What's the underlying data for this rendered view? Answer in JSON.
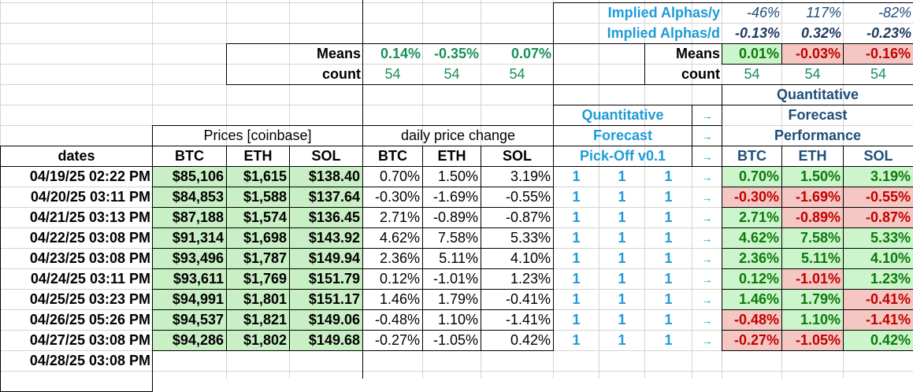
{
  "top_stats": {
    "implied_alphas_y": {
      "label": "Implied Alphas/y",
      "values": [
        "-46%",
        "117%",
        "-82%"
      ]
    },
    "implied_alphas_d": {
      "label": "Implied Alphas/d",
      "values": [
        "-0.13%",
        "0.32%",
        "-0.23%"
      ]
    },
    "change_means": {
      "label": "Means",
      "values": [
        "0.14%",
        "-0.35%",
        "0.07%"
      ]
    },
    "change_count": {
      "label": "count",
      "values": [
        54,
        54,
        54
      ]
    },
    "performance_means": {
      "label": "Means",
      "values": [
        "0.01%",
        "-0.03%",
        "-0.16%"
      ]
    },
    "performance_count": {
      "label": "count",
      "values": [
        54,
        54,
        54
      ]
    }
  },
  "headers": {
    "dates": "dates",
    "prices_group": "Prices [coinbase]",
    "change_group": "daily price change",
    "forecast_group": [
      "Quantitative",
      "Forecast",
      "Pick-Off v0.1"
    ],
    "arrows": [
      "→",
      "→",
      "→"
    ],
    "performance_group": [
      "Quantitative",
      "Forecast",
      "Performance"
    ],
    "price_cols": [
      "BTC",
      "ETH",
      "SOL"
    ],
    "change_cols": [
      "BTC",
      "ETH",
      "SOL"
    ],
    "performance_cols": [
      "BTC",
      "ETH",
      "SOL"
    ]
  },
  "rows": [
    {
      "date": "04/19/25 02:22 PM",
      "prices": [
        "$85,106",
        "$1,615",
        "$138.40"
      ],
      "changes": [
        "0.70%",
        "1.50%",
        "3.19%"
      ],
      "forecast": [
        1,
        1,
        1
      ],
      "arrow": "→",
      "performance": [
        "0.70%",
        "1.50%",
        "3.19%"
      ]
    },
    {
      "date": "04/20/25 03:11 PM",
      "prices": [
        "$84,853",
        "$1,588",
        "$137.64"
      ],
      "changes": [
        "-0.30%",
        "-1.69%",
        "-0.55%"
      ],
      "forecast": [
        1,
        1,
        1
      ],
      "arrow": "→",
      "performance": [
        "-0.30%",
        "-1.69%",
        "-0.55%"
      ]
    },
    {
      "date": "04/21/25 03:13 PM",
      "prices": [
        "$87,188",
        "$1,574",
        "$136.45"
      ],
      "changes": [
        "2.71%",
        "-0.89%",
        "-0.87%"
      ],
      "forecast": [
        1,
        1,
        1
      ],
      "arrow": "→",
      "performance": [
        "2.71%",
        "-0.89%",
        "-0.87%"
      ]
    },
    {
      "date": "04/22/25 03:08 PM",
      "prices": [
        "$91,314",
        "$1,698",
        "$143.92"
      ],
      "changes": [
        "4.62%",
        "7.58%",
        "5.33%"
      ],
      "forecast": [
        1,
        1,
        1
      ],
      "arrow": "→",
      "performance": [
        "4.62%",
        "7.58%",
        "5.33%"
      ]
    },
    {
      "date": "04/23/25 03:08 PM",
      "prices": [
        "$93,496",
        "$1,787",
        "$149.94"
      ],
      "changes": [
        "2.36%",
        "5.11%",
        "4.10%"
      ],
      "forecast": [
        1,
        1,
        1
      ],
      "arrow": "→",
      "performance": [
        "2.36%",
        "5.11%",
        "4.10%"
      ]
    },
    {
      "date": "04/24/25 03:11 PM",
      "prices": [
        "$93,611",
        "$1,769",
        "$151.79"
      ],
      "changes": [
        "0.12%",
        "-1.01%",
        "1.23%"
      ],
      "forecast": [
        1,
        1,
        1
      ],
      "arrow": "→",
      "performance": [
        "0.12%",
        "-1.01%",
        "1.23%"
      ]
    },
    {
      "date": "04/25/25 03:23 PM",
      "prices": [
        "$94,991",
        "$1,801",
        "$151.17"
      ],
      "changes": [
        "1.46%",
        "1.79%",
        "-0.41%"
      ],
      "forecast": [
        1,
        1,
        1
      ],
      "arrow": "→",
      "performance": [
        "1.46%",
        "1.79%",
        "-0.41%"
      ]
    },
    {
      "date": "04/26/25 05:26 PM",
      "prices": [
        "$94,537",
        "$1,821",
        "$149.06"
      ],
      "changes": [
        "-0.48%",
        "1.10%",
        "-1.41%"
      ],
      "forecast": [
        1,
        1,
        1
      ],
      "arrow": "→",
      "performance": [
        "-0.48%",
        "1.10%",
        "-1.41%"
      ]
    },
    {
      "date": "04/27/25 03:08 PM",
      "prices": [
        "$94,286",
        "$1,802",
        "$149.68"
      ],
      "changes": [
        "-0.27%",
        "-1.05%",
        "0.42%"
      ],
      "forecast": [
        1,
        1,
        1
      ],
      "arrow": "→",
      "performance": [
        "-0.27%",
        "-1.05%",
        "0.42%"
      ]
    },
    {
      "date": "04/28/25 03:08 PM"
    }
  ]
}
